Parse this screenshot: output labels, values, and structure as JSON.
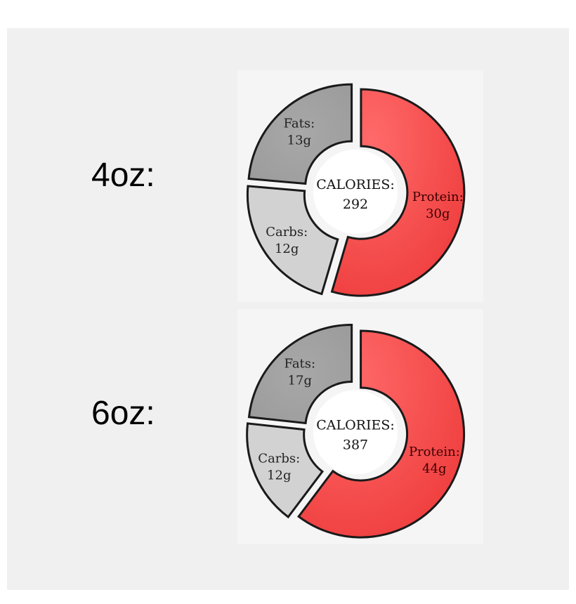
{
  "colors": {
    "protein": "#f04040",
    "fats": "#9b9b9b",
    "carbs": "#d2d2d2",
    "stroke": "#1a1a1a"
  },
  "chart_data": [
    {
      "type": "pie",
      "portion": "4oz:",
      "center_label": "CALORIES:",
      "calories": "292",
      "slices": [
        {
          "name": "Protein:",
          "value": 30,
          "value_label": "30g"
        },
        {
          "name": "Carbs:",
          "value": 12,
          "value_label": "12g"
        },
        {
          "name": "Fats:",
          "value": 13,
          "value_label": "13g"
        }
      ]
    },
    {
      "type": "pie",
      "portion": "6oz:",
      "center_label": "CALORIES:",
      "calories": "387",
      "slices": [
        {
          "name": "Protein:",
          "value": 44,
          "value_label": "44g"
        },
        {
          "name": "Carbs:",
          "value": 12,
          "value_label": "12g"
        },
        {
          "name": "Fats:",
          "value": 17,
          "value_label": "17g"
        }
      ]
    }
  ]
}
